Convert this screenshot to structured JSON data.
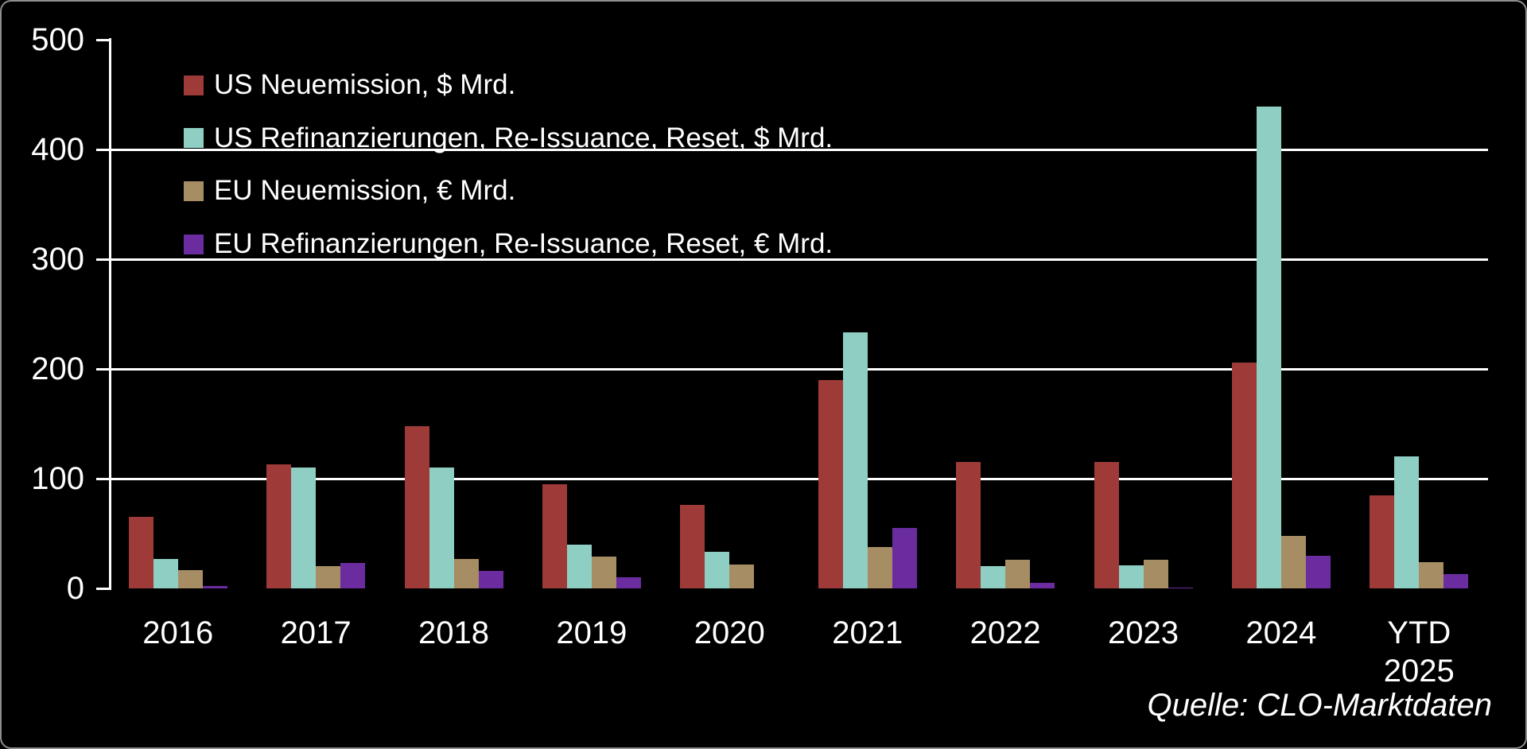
{
  "canvas": {
    "background_color": "#000000",
    "border_color": "#8f8f8f",
    "axis_color": "#ffffff",
    "text_color": "#ffffff"
  },
  "source_note": "Quelle: CLO-Marktdaten",
  "chart_data": {
    "type": "bar",
    "title": "",
    "xlabel": "",
    "ylabel": "",
    "categories": [
      "2016",
      "2017",
      "2018",
      "2019",
      "2020",
      "2021",
      "2022",
      "2023",
      "2024",
      "YTD 2025"
    ],
    "series": [
      {
        "name": "US Neuemission, $ Mrd.",
        "color": "#9E3B39",
        "values": [
          65,
          113,
          148,
          95,
          76,
          190,
          115,
          115,
          206,
          85
        ]
      },
      {
        "name": "US Refinanzierungen, Re-Issuance, Reset, $ Mrd.",
        "color": "#8FCFC3",
        "values": [
          27,
          110,
          110,
          40,
          33,
          233,
          20,
          21,
          439,
          120
        ]
      },
      {
        "name": "EU Neuemission, € Mrd.",
        "color": "#A78D63",
        "values": [
          17,
          20,
          27,
          29,
          22,
          38,
          26,
          26,
          48,
          24
        ]
      },
      {
        "name": "EU Refinanzierungen, Re-Issuance, Reset, € Mrd.",
        "color": "#6B2CA0",
        "values": [
          2,
          23,
          16,
          10,
          0,
          55,
          5,
          1,
          30,
          13
        ]
      }
    ],
    "ylim": [
      0,
      500
    ],
    "yticks": [
      0,
      100,
      200,
      300,
      400,
      500
    ],
    "gridlines": "horizontal white lines at 100, 200, 300, 400 behind bars",
    "legend_position": "top-left inside plot area, vertical list"
  }
}
